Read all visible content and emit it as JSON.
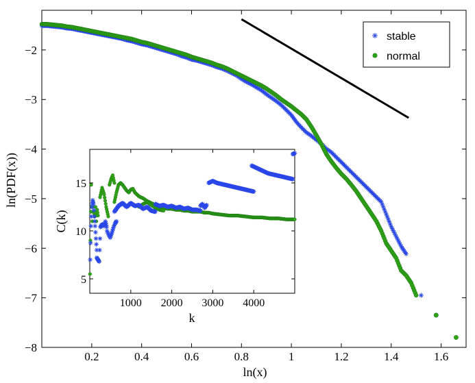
{
  "chart_data": [
    {
      "type": "scatter",
      "name": "main",
      "title": "",
      "xlabel": "ln(x)",
      "ylabel": "ln(PDF(x))",
      "xlim": [
        0,
        1.7
      ],
      "ylim": [
        -8,
        -1.2
      ],
      "xticks": [
        0.2,
        0.4,
        0.6,
        0.8,
        1.0,
        1.2,
        1.4,
        1.6
      ],
      "xtick_labels": [
        "0.2",
        "0.4",
        "0.6",
        "0.8",
        "1",
        "1.2",
        "1.4",
        "1.6"
      ],
      "yticks": [
        -8,
        -7,
        -6,
        -5,
        -4,
        -3,
        -2
      ],
      "ytick_labels": [
        "−8",
        "−7",
        "−6",
        "−5",
        "−4",
        "−3",
        "−2"
      ],
      "legend_position": "top-right",
      "series": [
        {
          "name": "stable",
          "marker": "asterisk",
          "color": "#2a47e8",
          "x": [
            0.0,
            0.02,
            0.04,
            0.06,
            0.08,
            0.1,
            0.12,
            0.14,
            0.16,
            0.18,
            0.2,
            0.22,
            0.24,
            0.26,
            0.28,
            0.3,
            0.32,
            0.34,
            0.36,
            0.38,
            0.4,
            0.42,
            0.44,
            0.46,
            0.48,
            0.5,
            0.52,
            0.54,
            0.56,
            0.58,
            0.6,
            0.62,
            0.64,
            0.66,
            0.68,
            0.7,
            0.72,
            0.74,
            0.76,
            0.78,
            0.8,
            0.82,
            0.84,
            0.86,
            0.88,
            0.9,
            0.92,
            0.94,
            0.96,
            0.98,
            1.0,
            1.02,
            1.04,
            1.06,
            1.08,
            1.1,
            1.12,
            1.14,
            1.16,
            1.18,
            1.2,
            1.22,
            1.24,
            1.26,
            1.28,
            1.3,
            1.32,
            1.34,
            1.36,
            1.38,
            1.4,
            1.42,
            1.44,
            1.46,
            1.52,
            1.58
          ],
          "y": [
            -1.5,
            -1.5,
            -1.51,
            -1.52,
            -1.53,
            -1.55,
            -1.56,
            -1.58,
            -1.6,
            -1.62,
            -1.64,
            -1.66,
            -1.68,
            -1.7,
            -1.72,
            -1.74,
            -1.76,
            -1.79,
            -1.81,
            -1.84,
            -1.87,
            -1.89,
            -1.92,
            -1.95,
            -1.98,
            -2.01,
            -2.04,
            -2.07,
            -2.11,
            -2.14,
            -2.18,
            -2.2,
            -2.23,
            -2.26,
            -2.29,
            -2.33,
            -2.36,
            -2.4,
            -2.45,
            -2.5,
            -2.57,
            -2.63,
            -2.68,
            -2.74,
            -2.8,
            -2.88,
            -2.95,
            -3.02,
            -3.1,
            -3.2,
            -3.3,
            -3.44,
            -3.55,
            -3.65,
            -3.72,
            -3.8,
            -3.88,
            -3.98,
            -4.05,
            -4.15,
            -4.25,
            -4.35,
            -4.45,
            -4.55,
            -4.65,
            -4.75,
            -4.85,
            -4.95,
            -5.05,
            -5.3,
            -5.55,
            -5.75,
            -5.95,
            -6.1,
            -6.95,
            -7.35
          ]
        },
        {
          "name": "normal",
          "marker": "circle",
          "color": "#2fa219",
          "x": [
            0.0,
            0.02,
            0.04,
            0.06,
            0.08,
            0.1,
            0.12,
            0.14,
            0.16,
            0.18,
            0.2,
            0.22,
            0.24,
            0.26,
            0.28,
            0.3,
            0.32,
            0.34,
            0.36,
            0.38,
            0.4,
            0.42,
            0.44,
            0.46,
            0.48,
            0.5,
            0.52,
            0.54,
            0.56,
            0.58,
            0.6,
            0.62,
            0.64,
            0.66,
            0.68,
            0.7,
            0.72,
            0.74,
            0.76,
            0.78,
            0.8,
            0.82,
            0.84,
            0.86,
            0.88,
            0.9,
            0.92,
            0.94,
            0.96,
            0.98,
            1.0,
            1.02,
            1.04,
            1.06,
            1.08,
            1.1,
            1.12,
            1.14,
            1.16,
            1.18,
            1.2,
            1.22,
            1.24,
            1.26,
            1.28,
            1.3,
            1.32,
            1.34,
            1.36,
            1.38,
            1.4,
            1.42,
            1.44,
            1.46,
            1.48,
            1.5,
            1.58,
            1.66
          ],
          "y": [
            -1.48,
            -1.48,
            -1.49,
            -1.5,
            -1.51,
            -1.53,
            -1.54,
            -1.56,
            -1.58,
            -1.6,
            -1.62,
            -1.64,
            -1.66,
            -1.68,
            -1.7,
            -1.72,
            -1.74,
            -1.76,
            -1.78,
            -1.81,
            -1.84,
            -1.86,
            -1.89,
            -1.92,
            -1.95,
            -1.98,
            -2.01,
            -2.04,
            -2.07,
            -2.1,
            -2.14,
            -2.17,
            -2.2,
            -2.23,
            -2.26,
            -2.3,
            -2.33,
            -2.37,
            -2.42,
            -2.47,
            -2.52,
            -2.57,
            -2.62,
            -2.67,
            -2.72,
            -2.78,
            -2.85,
            -2.92,
            -3.0,
            -3.07,
            -3.14,
            -3.22,
            -3.3,
            -3.4,
            -3.55,
            -3.72,
            -3.9,
            -4.1,
            -4.25,
            -4.38,
            -4.5,
            -4.6,
            -4.72,
            -4.85,
            -5.0,
            -5.15,
            -5.3,
            -5.45,
            -5.65,
            -5.9,
            -6.05,
            -6.2,
            -6.45,
            -6.55,
            -6.7,
            -6.95,
            -7.35,
            -7.8
          ]
        }
      ],
      "reference_line": {
        "x": [
          0.8,
          1.47
        ],
        "y": [
          -1.38,
          -3.37
        ],
        "color": "#000000"
      }
    },
    {
      "type": "scatter",
      "name": "inset",
      "title": "",
      "xlabel": "k",
      "ylabel": "C(k)",
      "xlim": [
        0,
        5000
      ],
      "ylim": [
        3.5,
        18.5
      ],
      "xticks": [
        1000,
        2000,
        3000,
        4000
      ],
      "xtick_labels": [
        "1000",
        "2000",
        "3000",
        "4000"
      ],
      "yticks": [
        5,
        10,
        15
      ],
      "ytick_labels": [
        "5",
        "10",
        "15"
      ],
      "series": [
        {
          "name": "stable",
          "marker": "asterisk",
          "color": "#2a47e8",
          "segments": [
            {
              "x": [
                10,
                30,
                50,
                70,
                90,
                110,
                130,
                150,
                170
              ],
              "y": [
                7,
                10.5,
                12.5,
                13.2,
                12.8,
                11.5,
                10.5,
                9.2,
                8.0
              ]
            },
            {
              "x": [
                170,
                200,
                230,
                260,
                290,
                320,
                350,
                380,
                410
              ],
              "y": [
                7.2,
                7.0,
                6.8,
                10.4,
                10.6,
                10.7,
                10.5,
                11.0,
                10.4
              ]
            },
            {
              "x": [
                420,
                460,
                500,
                540,
                580,
                620,
                650
              ],
              "y": [
                10.0,
                9.6,
                9.3,
                9.8,
                10.4,
                10.8,
                11.0
              ]
            },
            {
              "x": [
                600,
                700,
                800,
                900,
                1000,
                1100,
                1200,
                1300,
                1400,
                1500,
                1600
              ],
              "y": [
                12.0,
                12.6,
                12.9,
                12.5,
                12.9,
                12.6,
                12.7,
                12.3,
                12.5,
                12.1,
                12.0
              ]
            },
            {
              "x": [
                1600,
                1700,
                1800,
                1900,
                2000,
                2100,
                2200,
                2300,
                2400,
                2500,
                2600,
                2700
              ],
              "y": [
                12.8,
                12.6,
                12.7,
                12.5,
                12.6,
                12.4,
                12.5,
                12.3,
                12.4,
                12.2,
                12.2,
                12.1
              ]
            },
            {
              "x": [
                2700,
                2750,
                2800,
                2850
              ],
              "y": [
                12.6,
                12.8,
                12.4,
                12.7
              ]
            },
            {
              "x": [
                2900,
                3000,
                3100,
                3200,
                3300,
                3400,
                3500,
                3600,
                3700,
                3800,
                3900,
                4000
              ],
              "y": [
                15.0,
                15.2,
                15.0,
                14.9,
                14.8,
                14.7,
                14.6,
                14.5,
                14.4,
                14.3,
                14.2,
                14.1
              ]
            },
            {
              "x": [
                3950,
                4050,
                4150,
                4250,
                4350,
                4450,
                4550,
                4650,
                4750,
                4850,
                4950
              ],
              "y": [
                16.8,
                16.6,
                16.4,
                16.2,
                16.0,
                15.9,
                15.8,
                15.7,
                15.6,
                15.5,
                15.4
              ]
            },
            {
              "x": [
                4950,
                5000
              ],
              "y": [
                18.0,
                18.1
              ]
            }
          ]
        },
        {
          "name": "normal",
          "marker": "circle",
          "color": "#2fa219",
          "segments": [
            {
              "x": [
                5,
                15,
                25,
                35,
                45,
                60,
                80,
                100,
                120,
                140,
                160,
                180,
                200
              ],
              "y": [
                5.5,
                9.0,
                12.0,
                14.8,
                12.5,
                11.0,
                13.0,
                12.0,
                11.5,
                12.5,
                11.0,
                12.2,
                11.6
              ]
            },
            {
              "x": [
                250,
                300,
                350,
                400,
                450
              ],
              "y": [
                13.5,
                14.5,
                13.8,
                12.5,
                11.5
              ]
            },
            {
              "x": [
                480,
                520,
                560,
                600
              ],
              "y": [
                14.8,
                15.4,
                15.8,
                15.0
              ]
            },
            {
              "x": [
                600,
                650,
                700,
                750,
                800,
                850,
                900,
                950,
                1000,
                1050,
                1100,
                1150,
                1200,
                1300,
                1400,
                1500,
                1600,
                1700,
                1800,
                1900,
                2000,
                2100,
                2200,
                2300,
                2400,
                2500,
                2600,
                2700,
                2800,
                2900,
                3000,
                3200,
                3400,
                3600,
                3800,
                4000,
                4200,
                4400,
                4600,
                4800,
                5000
              ],
              "y": [
                13.0,
                14.0,
                14.8,
                15.0,
                14.8,
                14.5,
                14.2,
                14.0,
                14.3,
                14.4,
                14.0,
                13.8,
                13.6,
                13.4,
                13.1,
                12.9,
                12.7,
                12.5,
                12.4,
                12.3,
                12.3,
                12.2,
                12.2,
                12.1,
                12.1,
                12.0,
                12.0,
                12.0,
                11.9,
                11.9,
                11.8,
                11.7,
                11.6,
                11.6,
                11.5,
                11.4,
                11.4,
                11.3,
                11.3,
                11.2,
                11.2
              ]
            },
            {
              "x": [
                1200,
                1300,
                1400,
                1500,
                1600,
                1700,
                1800
              ],
              "y": [
                12.5,
                12.8,
                13.0,
                12.7,
                12.4,
                12.2,
                12.1
              ]
            }
          ]
        }
      ]
    }
  ]
}
